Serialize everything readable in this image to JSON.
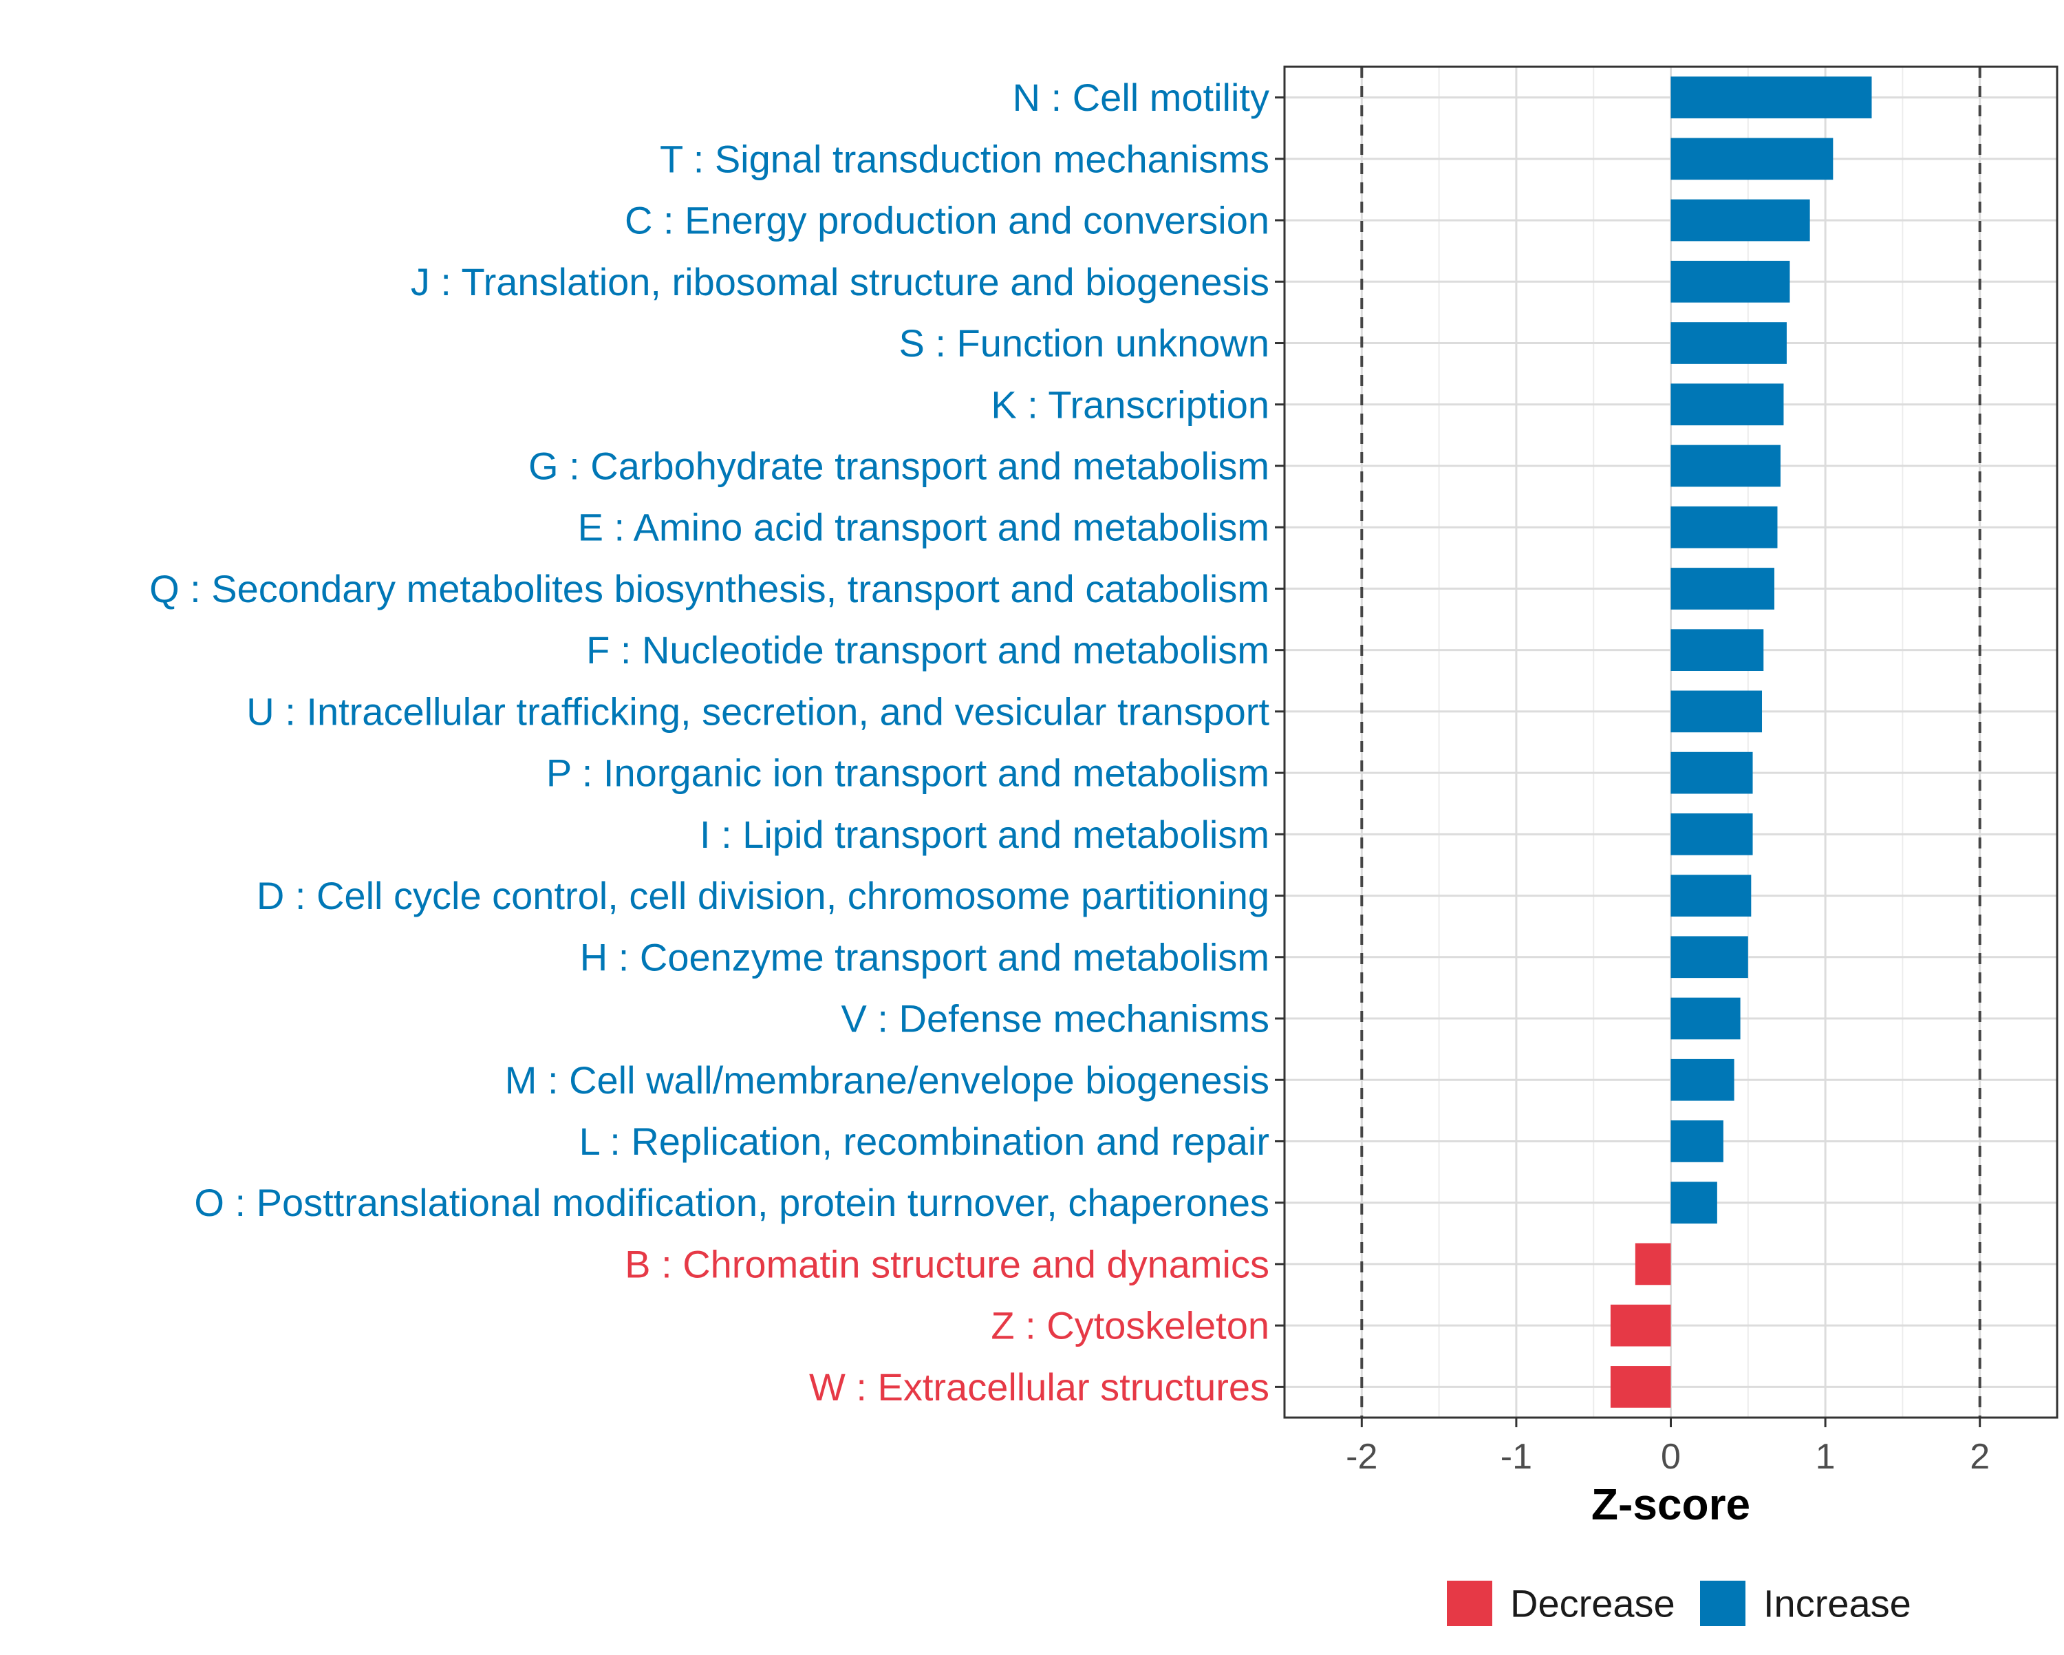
{
  "chart_data": {
    "type": "bar",
    "orientation": "horizontal",
    "title": "",
    "xlabel": "Z-score",
    "ylabel": "",
    "xlim": [
      -2.5,
      2.5
    ],
    "xticks": [
      -2,
      -1,
      0,
      1,
      2
    ],
    "xtick_labels": [
      "-2",
      "-1",
      "0",
      "1",
      "2"
    ],
    "reference_lines": [
      -2,
      2
    ],
    "grid": true,
    "colors": {
      "Decrease": "#e63946",
      "Increase": "#0077b6"
    },
    "categories": [
      "N : Cell motility",
      "T : Signal transduction mechanisms",
      "C : Energy production and conversion",
      "J : Translation, ribosomal structure and biogenesis",
      "S : Function unknown",
      "K : Transcription",
      "G : Carbohydrate transport and metabolism",
      "E : Amino acid transport and metabolism",
      "Q : Secondary metabolites biosynthesis, transport and catabolism",
      "F : Nucleotide transport and metabolism",
      "U : Intracellular trafficking, secretion, and vesicular transport",
      "P : Inorganic ion transport and metabolism",
      "I : Lipid transport and metabolism",
      "D : Cell cycle control, cell division, chromosome partitioning",
      "H : Coenzyme transport and metabolism",
      "V : Defense mechanisms",
      "M : Cell wall/membrane/envelope biogenesis",
      "L : Replication, recombination and repair",
      "O : Posttranslational modification, protein turnover, chaperones",
      "B : Chromatin structure and dynamics",
      "Z : Cytoskeleton",
      "W : Extracellular structures"
    ],
    "values": [
      1.3,
      1.05,
      0.9,
      0.77,
      0.75,
      0.73,
      0.71,
      0.69,
      0.67,
      0.6,
      0.59,
      0.53,
      0.53,
      0.52,
      0.5,
      0.45,
      0.41,
      0.34,
      0.3,
      -0.23,
      -0.39,
      -0.39
    ],
    "groups": [
      "Increase",
      "Increase",
      "Increase",
      "Increase",
      "Increase",
      "Increase",
      "Increase",
      "Increase",
      "Increase",
      "Increase",
      "Increase",
      "Increase",
      "Increase",
      "Increase",
      "Increase",
      "Increase",
      "Increase",
      "Increase",
      "Increase",
      "Decrease",
      "Decrease",
      "Decrease"
    ],
    "legend": {
      "position": "bottom",
      "entries": [
        "Decrease",
        "Increase"
      ]
    }
  }
}
